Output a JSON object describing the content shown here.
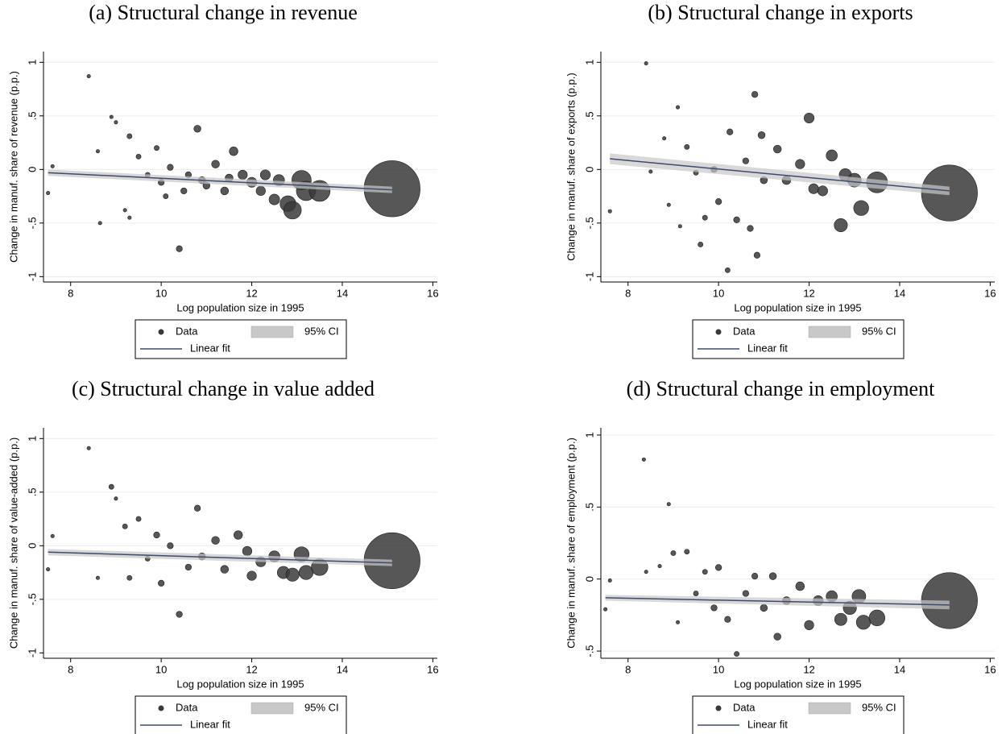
{
  "chart_data": [
    {
      "type": "scatter",
      "title": "(a) Structural change in revenue",
      "x_label": "Log population size in 1995",
      "y_label": "Change in manuf. share of revenue (p.p.)",
      "xlim": [
        7.4,
        16.1
      ],
      "ylim": [
        -1.05,
        1.1
      ],
      "xticks": [
        8,
        10,
        12,
        14,
        16
      ],
      "yticks": [
        -1,
        {
          "value": -0.5,
          "label": "-.5"
        },
        0,
        {
          "value": 0.5,
          "label": ".5"
        },
        1
      ],
      "grid": true,
      "series": [
        {
          "name": "Data",
          "color": "#3a3a3a",
          "x": [
            7.5,
            7.6,
            8.4,
            8.6,
            8.65,
            8.9,
            9.0,
            9.2,
            9.3,
            9.3,
            9.5,
            9.7,
            9.9,
            10.0,
            10.1,
            10.2,
            10.4,
            10.5,
            10.6,
            10.8,
            10.9,
            11.0,
            11.2,
            11.4,
            11.5,
            11.6,
            11.8,
            12.0,
            12.2,
            12.3,
            12.5,
            12.6,
            12.8,
            12.9,
            13.1,
            13.2,
            13.5,
            15.1
          ],
          "values": [
            -0.22,
            0.03,
            0.87,
            0.17,
            -0.5,
            0.49,
            0.44,
            -0.38,
            0.31,
            -0.45,
            0.12,
            -0.05,
            0.2,
            -0.12,
            -0.25,
            0.02,
            -0.74,
            -0.2,
            -0.05,
            0.38,
            -0.1,
            -0.15,
            0.05,
            -0.2,
            -0.08,
            0.17,
            -0.05,
            -0.12,
            -0.2,
            -0.05,
            -0.28,
            -0.1,
            -0.32,
            -0.38,
            -0.1,
            -0.2,
            -0.2,
            -0.18
          ],
          "sizes": [
            1,
            1,
            1,
            1,
            1,
            1,
            1,
            1,
            2,
            1,
            2,
            2,
            2,
            3,
            2,
            3,
            3,
            3,
            3,
            4,
            4,
            4,
            5,
            5,
            5,
            6,
            7,
            8,
            7,
            8,
            9,
            10,
            20,
            25,
            30,
            30,
            35,
            250
          ]
        }
      ],
      "fit": {
        "name": "Linear fit",
        "color": "#3e4a6e",
        "x": [
          7.5,
          15.1
        ],
        "values": [
          -0.03,
          -0.19
        ]
      },
      "ci": {
        "name": "95% CI",
        "color": "#c8c8c8",
        "x": [
          7.5,
          15.1
        ],
        "lower": [
          -0.06,
          -0.22
        ],
        "upper": [
          0,
          -0.16
        ]
      }
    },
    {
      "type": "scatter",
      "title": "(b) Structural change in exports",
      "x_label": "Log population size in 1995",
      "y_label": "Change in manuf. share of exports (p.p.)",
      "xlim": [
        7.4,
        16.1
      ],
      "ylim": [
        -1.05,
        1.1
      ],
      "xticks": [
        8,
        10,
        12,
        14,
        16
      ],
      "yticks": [
        -1,
        {
          "value": -0.5,
          "label": "-.5"
        },
        0,
        {
          "value": 0.5,
          "label": ".5"
        },
        1
      ],
      "grid": true,
      "series": [
        {
          "name": "Data",
          "color": "#3a3a3a",
          "x": [
            7.6,
            8.4,
            8.5,
            8.8,
            8.9,
            9.1,
            9.15,
            9.3,
            9.5,
            9.6,
            9.7,
            9.9,
            10.0,
            10.2,
            10.25,
            10.4,
            10.6,
            10.7,
            10.8,
            10.85,
            10.95,
            11.0,
            11.3,
            11.5,
            11.8,
            12.0,
            12.1,
            12.3,
            12.5,
            12.7,
            12.8,
            13.0,
            13.15,
            13.5,
            15.1
          ],
          "values": [
            -0.39,
            0.99,
            -0.02,
            0.29,
            -0.33,
            0.58,
            -0.53,
            0.21,
            -0.03,
            -0.7,
            -0.45,
            0.0,
            -0.3,
            -0.94,
            0.35,
            -0.47,
            0.08,
            -0.55,
            0.7,
            -0.8,
            0.32,
            -0.1,
            0.19,
            -0.1,
            0.05,
            0.48,
            -0.18,
            -0.2,
            0.13,
            -0.52,
            -0.05,
            -0.1,
            -0.36,
            -0.12,
            -0.22
          ],
          "sizes": [
            1,
            1,
            1,
            1,
            1,
            1,
            1,
            2,
            2,
            2,
            2,
            3,
            3,
            2,
            3,
            3,
            3,
            3,
            3,
            3,
            4,
            4,
            5,
            6,
            7,
            8,
            8,
            8,
            10,
            14,
            12,
            15,
            18,
            35,
            250
          ]
        }
      ],
      "fit": {
        "name": "Linear fit",
        "color": "#3e4a6e",
        "x": [
          7.6,
          15.1
        ],
        "values": [
          0.1,
          -0.2
        ]
      },
      "ci": {
        "name": "95% CI",
        "color": "#c8c8c8",
        "x": [
          7.6,
          15.1
        ],
        "lower": [
          0.05,
          -0.24
        ],
        "upper": [
          0.15,
          -0.16
        ]
      }
    },
    {
      "type": "scatter",
      "title": "(c) Structural change in value added",
      "x_label": "Log population size in 1995",
      "y_label": "Change in manuf. share of value-added (p.p.)",
      "xlim": [
        7.4,
        16.1
      ],
      "ylim": [
        -1.05,
        1.1
      ],
      "xticks": [
        8,
        10,
        12,
        14,
        16
      ],
      "yticks": [
        -1,
        {
          "value": -0.5,
          "label": "-.5"
        },
        0,
        {
          "value": 0.5,
          "label": ".5"
        },
        1
      ],
      "grid": true,
      "series": [
        {
          "name": "Data",
          "color": "#3a3a3a",
          "x": [
            7.5,
            7.6,
            8.4,
            8.6,
            8.9,
            9.0,
            9.2,
            9.3,
            9.5,
            9.7,
            9.9,
            10.0,
            10.2,
            10.4,
            10.6,
            10.8,
            10.9,
            11.2,
            11.4,
            11.7,
            11.9,
            12.0,
            12.2,
            12.5,
            12.7,
            12.9,
            13.1,
            13.2,
            13.5,
            15.1
          ],
          "values": [
            -0.22,
            0.09,
            0.91,
            -0.3,
            0.55,
            0.44,
            0.18,
            -0.3,
            0.25,
            -0.12,
            0.1,
            -0.35,
            0.0,
            -0.64,
            -0.2,
            0.35,
            -0.1,
            0.05,
            -0.22,
            0.1,
            -0.05,
            -0.28,
            -0.15,
            -0.1,
            -0.25,
            -0.27,
            -0.08,
            -0.25,
            -0.2,
            -0.14
          ],
          "sizes": [
            1,
            1,
            1,
            1,
            2,
            1,
            2,
            2,
            2,
            2,
            3,
            3,
            3,
            3,
            3,
            3,
            4,
            5,
            5,
            6,
            7,
            7,
            8,
            10,
            12,
            14,
            18,
            16,
            22,
            250
          ]
        }
      ],
      "fit": {
        "name": "Linear fit",
        "color": "#3e4a6e",
        "x": [
          7.5,
          15.1
        ],
        "values": [
          -0.06,
          -0.16
        ]
      },
      "ci": {
        "name": "95% CI",
        "color": "#c8c8c8",
        "x": [
          7.5,
          15.1
        ],
        "lower": [
          -0.09,
          -0.19
        ],
        "upper": [
          -0.03,
          -0.13
        ]
      }
    },
    {
      "type": "scatter",
      "title": "(d) Structural change in employment",
      "x_label": "Log population size in 1995",
      "y_label": "Change in manuf. share of employment (p.p.)",
      "xlim": [
        7.4,
        16.1
      ],
      "ylim": [
        -0.55,
        1.05
      ],
      "xticks": [
        8,
        10,
        12,
        14,
        16
      ],
      "yticks": [
        {
          "value": -0.5,
          "label": "-.5"
        },
        0,
        {
          "value": 0.5,
          "label": ".5"
        },
        1
      ],
      "grid": true,
      "series": [
        {
          "name": "Data",
          "color": "#3a3a3a",
          "x": [
            7.5,
            7.6,
            8.35,
            8.4,
            8.7,
            8.9,
            9.0,
            9.1,
            9.3,
            9.5,
            9.7,
            9.9,
            10.0,
            10.2,
            10.4,
            10.6,
            10.8,
            11.0,
            11.2,
            11.3,
            11.5,
            11.8,
            12.0,
            12.2,
            12.5,
            12.7,
            12.9,
            13.1,
            13.2,
            13.5,
            15.1
          ],
          "values": [
            -0.21,
            -0.01,
            0.83,
            0.05,
            0.09,
            0.52,
            0.18,
            -0.3,
            0.19,
            -0.1,
            0.05,
            -0.2,
            0.08,
            -0.28,
            -0.52,
            -0.1,
            0.02,
            -0.2,
            0.02,
            -0.4,
            -0.15,
            -0.05,
            -0.32,
            -0.15,
            -0.12,
            -0.28,
            -0.2,
            -0.12,
            -0.3,
            -0.27,
            -0.15
          ],
          "sizes": [
            1,
            1,
            1,
            1,
            1,
            1,
            2,
            1,
            2,
            2,
            2,
            3,
            3,
            3,
            2,
            3,
            3,
            4,
            4,
            4,
            5,
            6,
            7,
            8,
            10,
            12,
            14,
            15,
            16,
            20,
            250
          ]
        }
      ],
      "fit": {
        "name": "Linear fit",
        "color": "#3e4a6e",
        "x": [
          7.5,
          15.1
        ],
        "values": [
          -0.13,
          -0.18
        ]
      },
      "ci": {
        "name": "95% CI",
        "color": "#c8c8c8",
        "x": [
          7.5,
          15.1
        ],
        "lower": [
          -0.15,
          -0.21
        ],
        "upper": [
          -0.11,
          -0.15
        ]
      }
    }
  ]
}
